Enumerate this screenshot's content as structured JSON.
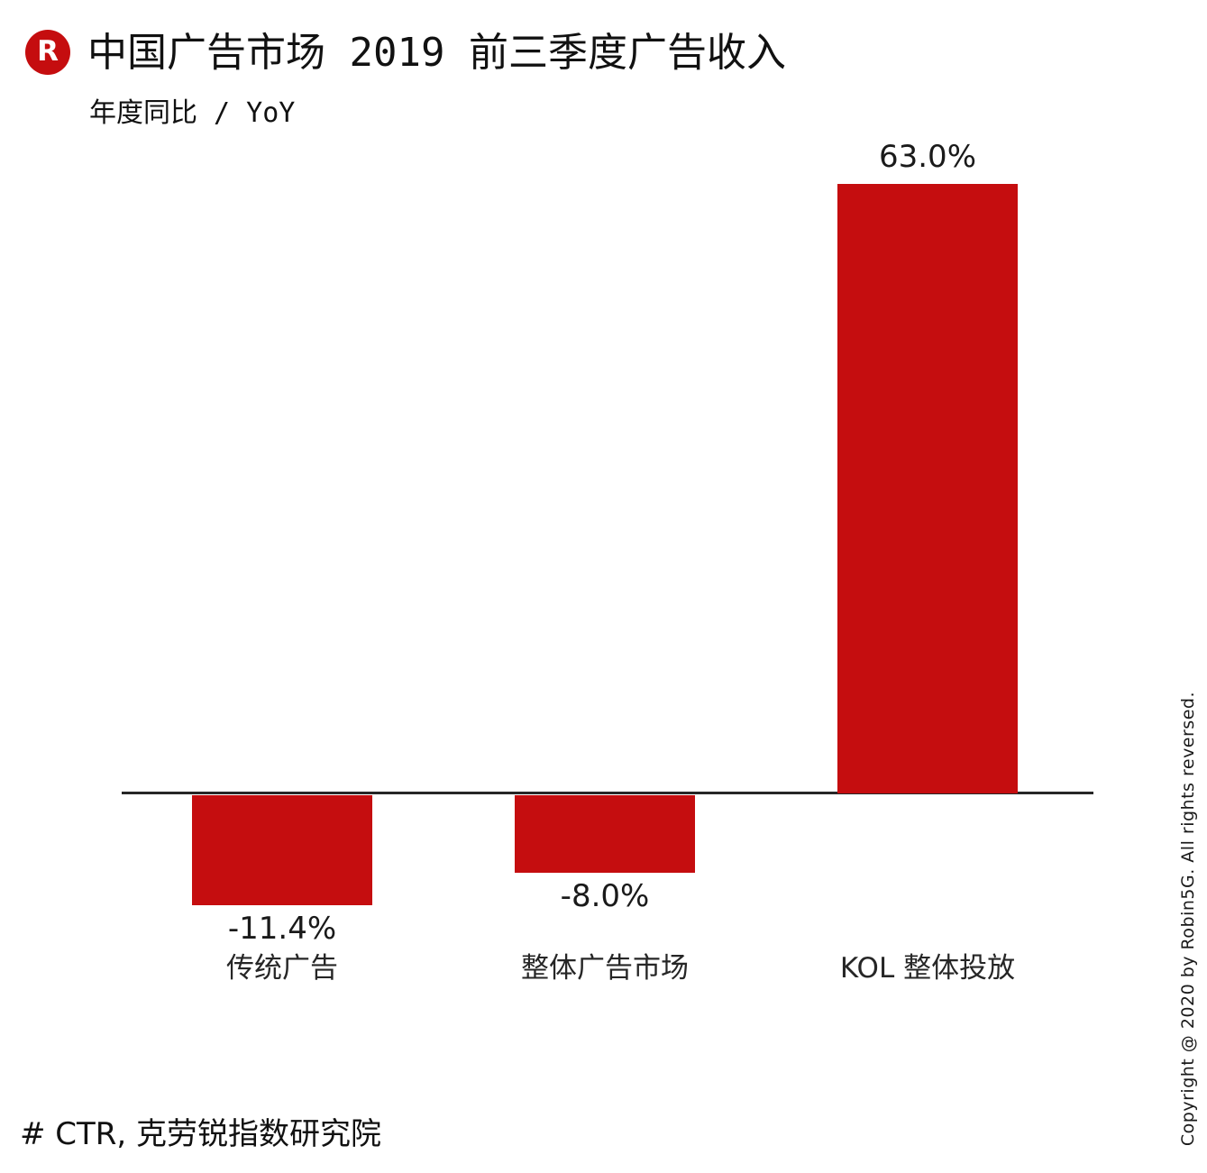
{
  "logo": {
    "letter": "R",
    "color": "#c50d0f"
  },
  "header": {
    "title": "中国广告市场 2019 前三季度广告收入",
    "subtitle": "年度同比 / YoY"
  },
  "chart_data": {
    "type": "bar",
    "title": "中国广告市场 2019 前三季度广告收入",
    "subtitle": "年度同比 / YoY",
    "categories": [
      "传统广告",
      "整体广告市场",
      "KOL 整体投放"
    ],
    "values": [
      -11.4,
      -8.0,
      63.0
    ],
    "value_labels": [
      "-11.4%",
      "-8.0%",
      "63.0%"
    ],
    "unit": "%",
    "ylim": [
      -15,
      70
    ],
    "grid": false,
    "legend": false,
    "bar_color": "#c50d0f",
    "axis_color": "#262626",
    "baseline": 0
  },
  "footer": {
    "source": "# CTR, 克劳锐指数研究院"
  },
  "watermark": {
    "copyright": "Copyright @ 2020 by Robin5G. All rights reversed."
  }
}
